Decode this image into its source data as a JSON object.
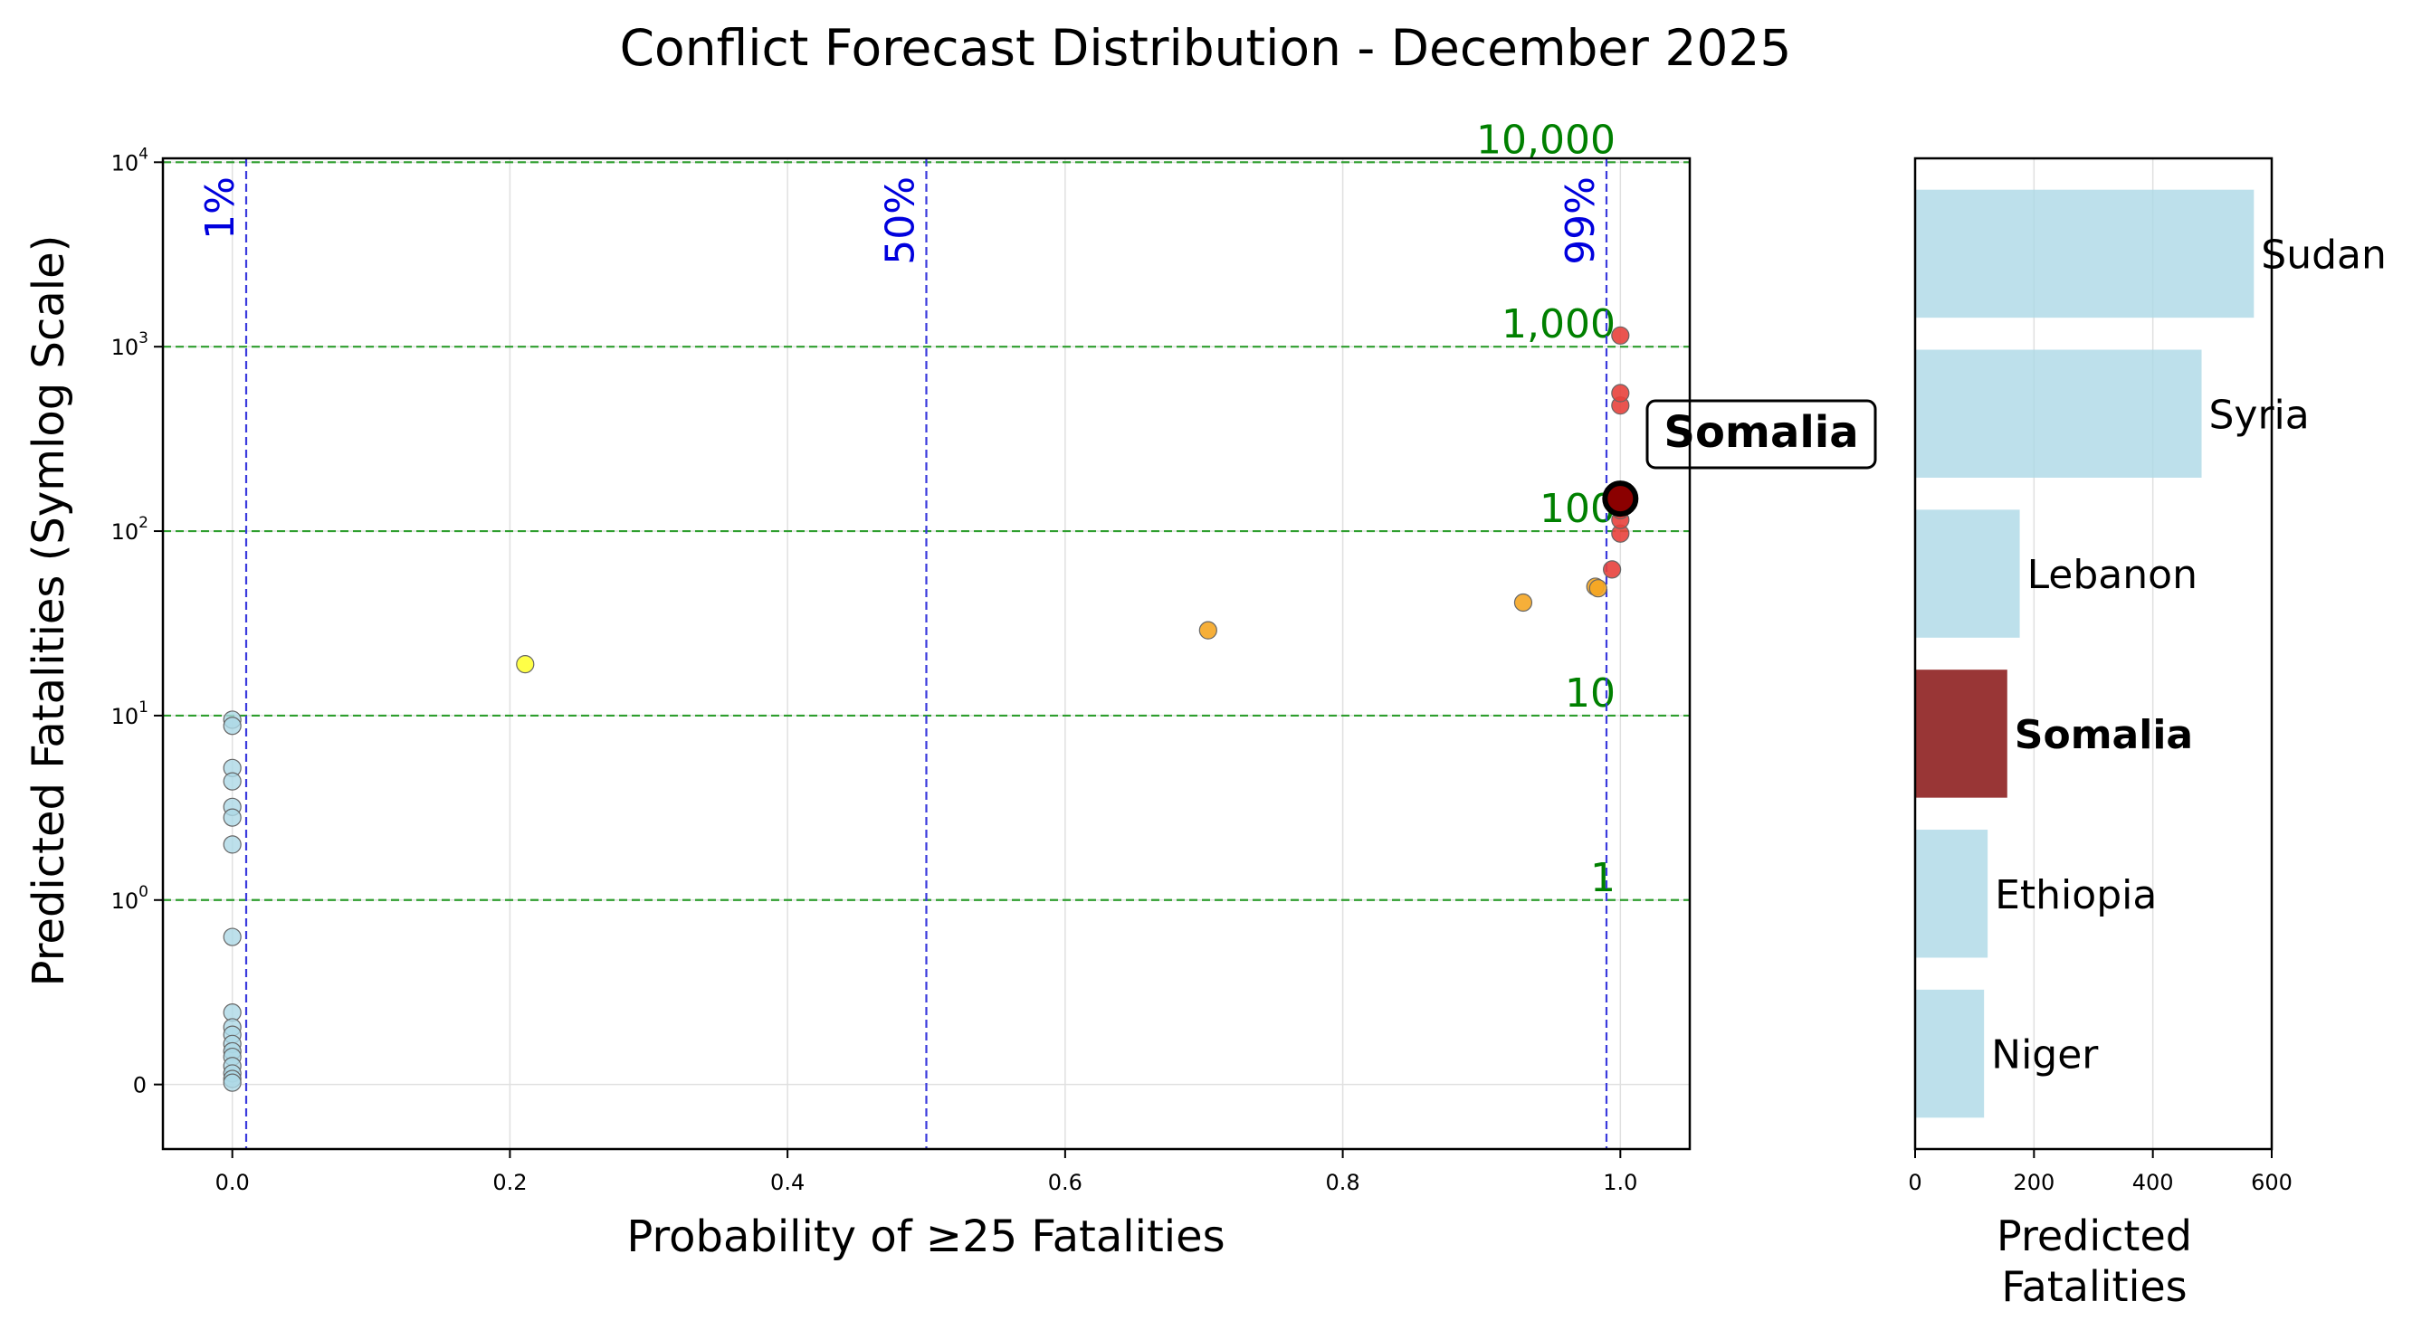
{
  "figure": {
    "title": "Conflict Forecast Distribution - December 2025"
  },
  "colors": {
    "background": "#ffffff",
    "grid": "#e0e0e0",
    "reference_h": "#2e9e2e",
    "reference_h_text": "#008000",
    "reference_v": "#3b3bdd",
    "reference_v_text": "#0000dd",
    "low": "#add8e6",
    "moderate": "#ffff33",
    "elevated": "#f5a623",
    "high": "#e8413c",
    "highlight_fill": "#8b0000",
    "bar_default": "#add8e6",
    "bar_highlight": "#8b1a1a"
  },
  "chart_data": [
    {
      "type": "scatter",
      "title": "",
      "xlabel": "Probability of ≥25 Fatalities",
      "ylabel": "Predicted Fatalities (Symlog Scale)",
      "y_scale": "symlog",
      "xlim": [
        -0.05,
        1.05
      ],
      "ylim": [
        -0.35,
        10500
      ],
      "x_ticks": [
        0.0,
        0.2,
        0.4,
        0.6,
        0.8,
        1.0
      ],
      "x_tick_labels": [
        "0.0",
        "0.2",
        "0.4",
        "0.6",
        "0.8",
        "1.0"
      ],
      "y_ticks": [
        {
          "value": 0,
          "base": "0",
          "exp": ""
        },
        {
          "value": 1,
          "base": "10",
          "exp": "0"
        },
        {
          "value": 10,
          "base": "10",
          "exp": "1"
        },
        {
          "value": 100,
          "base": "10",
          "exp": "2"
        },
        {
          "value": 1000,
          "base": "10",
          "exp": "3"
        },
        {
          "value": 10000,
          "base": "10",
          "exp": "4"
        }
      ],
      "grid": true,
      "h_reference_lines": [
        {
          "value": 1,
          "label": "1"
        },
        {
          "value": 10,
          "label": "10"
        },
        {
          "value": 100,
          "label": "100"
        },
        {
          "value": 1000,
          "label": "1,000"
        },
        {
          "value": 10000,
          "label": "10,000"
        }
      ],
      "v_reference_lines": [
        {
          "value": 0.01,
          "label": "1%"
        },
        {
          "value": 0.5,
          "label": "50%"
        },
        {
          "value": 0.99,
          "label": "99%"
        }
      ],
      "highlight": {
        "label": "Somalia",
        "x": 1.0,
        "y": 150
      },
      "points": [
        {
          "x": 0.0,
          "y": 9.5,
          "c": "low"
        },
        {
          "x": 0.0,
          "y": 8.8,
          "c": "low"
        },
        {
          "x": 0.0,
          "y": 5.2,
          "c": "low"
        },
        {
          "x": 0.0,
          "y": 4.4,
          "c": "low"
        },
        {
          "x": 0.0,
          "y": 3.2,
          "c": "low"
        },
        {
          "x": 0.0,
          "y": 2.8,
          "c": "low"
        },
        {
          "x": 0.0,
          "y": 2.0,
          "c": "low"
        },
        {
          "x": 0.0,
          "y": 0.8,
          "c": "low"
        },
        {
          "x": 0.0,
          "y": 0.39,
          "c": "low"
        },
        {
          "x": 0.0,
          "y": 0.31,
          "c": "low"
        },
        {
          "x": 0.0,
          "y": 0.27,
          "c": "low"
        },
        {
          "x": 0.0,
          "y": 0.22,
          "c": "low"
        },
        {
          "x": 0.0,
          "y": 0.18,
          "c": "low"
        },
        {
          "x": 0.0,
          "y": 0.15,
          "c": "low"
        },
        {
          "x": 0.0,
          "y": 0.1,
          "c": "low"
        },
        {
          "x": 0.0,
          "y": 0.06,
          "c": "low"
        },
        {
          "x": 0.0,
          "y": 0.03,
          "c": "low"
        },
        {
          "x": 0.0,
          "y": 0.01,
          "c": "low"
        },
        {
          "x": 0.211,
          "y": 19,
          "c": "moderate"
        },
        {
          "x": 0.703,
          "y": 29,
          "c": "elevated"
        },
        {
          "x": 0.93,
          "y": 41,
          "c": "elevated"
        },
        {
          "x": 0.982,
          "y": 50,
          "c": "elevated"
        },
        {
          "x": 0.984,
          "y": 49,
          "c": "elevated"
        },
        {
          "x": 0.994,
          "y": 62,
          "c": "high"
        },
        {
          "x": 1.0,
          "y": 97,
          "c": "high"
        },
        {
          "x": 1.0,
          "y": 115,
          "c": "high"
        },
        {
          "x": 1.0,
          "y": 130,
          "c": "high"
        },
        {
          "x": 1.0,
          "y": 480,
          "c": "high"
        },
        {
          "x": 1.0,
          "y": 560,
          "c": "high"
        },
        {
          "x": 1.0,
          "y": 1150,
          "c": "high"
        }
      ]
    },
    {
      "type": "bar",
      "orientation": "horizontal",
      "title": "",
      "xlabel_lines": [
        "Predicted",
        "Fatalities"
      ],
      "xlim": [
        0,
        600
      ],
      "x_ticks": [
        0,
        200,
        400,
        600
      ],
      "x_tick_labels": [
        "0",
        "200",
        "400",
        "600"
      ],
      "grid": true,
      "categories": [
        "Sudan",
        "Syria",
        "Lebanon",
        "Somalia",
        "Ethiopia",
        "Niger"
      ],
      "values": [
        570,
        482,
        176,
        155,
        122,
        116
      ],
      "highlight": "Somalia"
    }
  ]
}
